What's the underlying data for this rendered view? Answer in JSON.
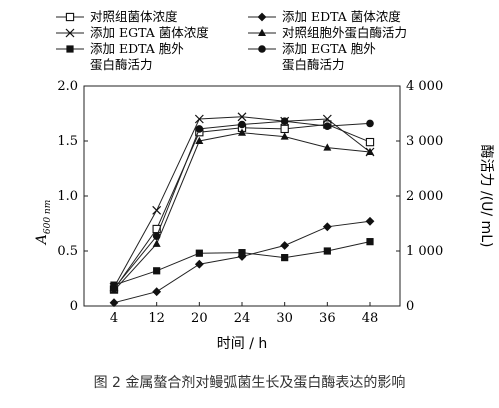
{
  "caption": "图 2   金属螯合剂对鳗弧菌生长及蛋白酶表达的影响",
  "chart_data": {
    "type": "line",
    "xlabel": "时间 / h",
    "ylabel_left": "A600 nm",
    "ylabel_right": "酶活力 /(U/ mL)",
    "x": [
      "4",
      "12",
      "20",
      "24",
      "30",
      "36",
      "48"
    ],
    "y_left_ticks": [
      "0",
      "0.5",
      "1.0",
      "1.5",
      "2.0"
    ],
    "y_right_ticks": [
      "0",
      "1 000",
      "2 000",
      "3 000",
      "4 000"
    ],
    "ylim_left": [
      0,
      2.0
    ],
    "ylim_right": [
      0,
      4000
    ],
    "series": [
      {
        "name": "对照组菌体浓度",
        "axis": "left",
        "marker": "open-square",
        "values": [
          0.15,
          0.7,
          1.58,
          1.62,
          1.61,
          1.65,
          1.49
        ]
      },
      {
        "name": "添加 EDTA 菌体浓度",
        "axis": "left",
        "marker": "filled-diamond",
        "values": [
          0.03,
          0.13,
          0.38,
          0.45,
          0.55,
          0.72,
          0.77
        ]
      },
      {
        "name": "添加 EGTA 菌体浓度",
        "axis": "left",
        "marker": "x",
        "values": [
          0.17,
          0.87,
          1.7,
          1.72,
          1.68,
          1.7,
          1.4
        ]
      },
      {
        "name": "对照组胞外蛋白酶活力",
        "axis": "right",
        "marker": "filled-triangle",
        "values": [
          280,
          1130,
          3000,
          3150,
          3080,
          2880,
          2800
        ]
      },
      {
        "name": "添加 EDTA 胞外蛋白酶活力",
        "axis": "right",
        "marker": "filled-square",
        "values": [
          380,
          640,
          960,
          970,
          880,
          1000,
          1170
        ]
      },
      {
        "name": "添加 EGTA 胞外蛋白酶活力",
        "axis": "right",
        "marker": "filled-circle",
        "values": [
          320,
          1270,
          3220,
          3300,
          3360,
          3270,
          3320
        ]
      }
    ],
    "legend": [
      {
        "label": "对照组菌体浓度",
        "marker": "open-square"
      },
      {
        "label": "添加 EDTA 菌体浓度",
        "marker": "filled-diamond"
      },
      {
        "label": "添加 EGTA 菌体浓度",
        "marker": "x"
      },
      {
        "label": "对照组胞外蛋白酶活力",
        "marker": "filled-triangle"
      },
      {
        "label": "添加 EDTA 胞外",
        "label2": "蛋白酶活力",
        "marker": "filled-square"
      },
      {
        "label": "添加 EGTA 胞外",
        "label2": "蛋白酶活力",
        "marker": "filled-circle"
      }
    ],
    "legend_position": "top",
    "grid": false
  }
}
